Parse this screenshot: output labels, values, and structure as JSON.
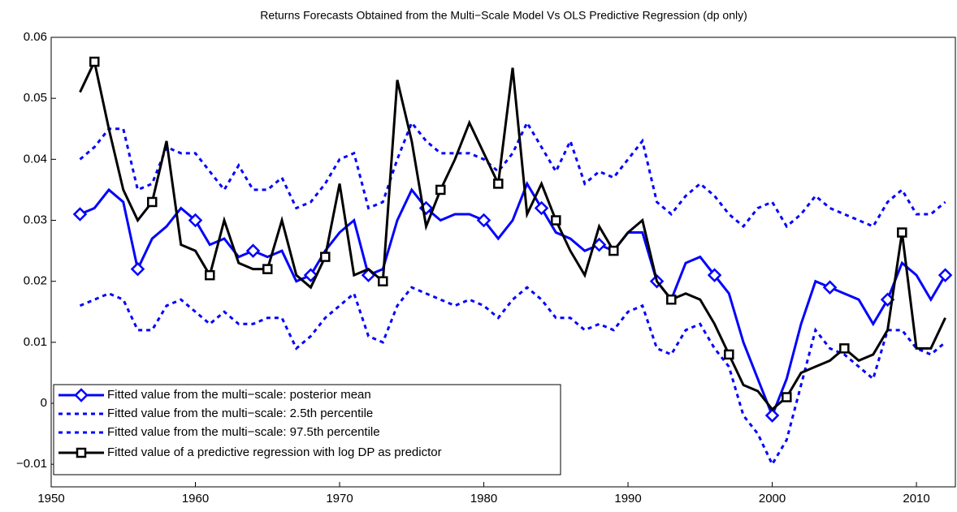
{
  "chart_data": {
    "type": "line",
    "title": "Returns Forecasts Obtained from the Multi−Scale Model Vs OLS Predictive Regression (dp only)",
    "x": [
      1952,
      1953,
      1954,
      1955,
      1956,
      1957,
      1958,
      1959,
      1960,
      1961,
      1962,
      1963,
      1964,
      1965,
      1966,
      1967,
      1968,
      1969,
      1970,
      1971,
      1972,
      1973,
      1974,
      1975,
      1976,
      1977,
      1978,
      1979,
      1980,
      1981,
      1982,
      1983,
      1984,
      1985,
      1986,
      1987,
      1988,
      1989,
      1990,
      1991,
      1992,
      1993,
      1994,
      1995,
      1996,
      1997,
      1998,
      1999,
      2000,
      2001,
      2002,
      2003,
      2004,
      2005,
      2006,
      2007,
      2008,
      2009,
      2010,
      2011,
      2012
    ],
    "series": [
      {
        "name": "Fitted value from the multi−scale: posterior mean",
        "color": "#0000ff",
        "style": "solid",
        "marker": "diamond",
        "values": [
          0.031,
          0.032,
          0.035,
          0.033,
          0.022,
          0.027,
          0.029,
          0.032,
          0.03,
          0.026,
          0.027,
          0.024,
          0.025,
          0.024,
          0.025,
          0.02,
          0.021,
          0.025,
          0.028,
          0.03,
          0.021,
          0.022,
          0.03,
          0.035,
          0.032,
          0.03,
          0.031,
          0.031,
          0.03,
          0.027,
          0.03,
          0.036,
          0.032,
          0.028,
          0.027,
          0.025,
          0.026,
          0.025,
          0.028,
          0.028,
          0.02,
          0.017,
          0.023,
          0.024,
          0.021,
          0.018,
          0.01,
          0.004,
          -0.002,
          0.004,
          0.013,
          0.02,
          0.019,
          0.018,
          0.017,
          0.013,
          0.017,
          0.023,
          0.021,
          0.017,
          0.021
        ]
      },
      {
        "name": "Fitted value from the multi−scale: 2.5th percentile",
        "color": "#0000ff",
        "style": "dashed",
        "marker": "none",
        "values": [
          0.016,
          0.017,
          0.018,
          0.017,
          0.012,
          0.012,
          0.016,
          0.017,
          0.015,
          0.013,
          0.015,
          0.013,
          0.013,
          0.014,
          0.014,
          0.009,
          0.011,
          0.014,
          0.016,
          0.018,
          0.011,
          0.01,
          0.016,
          0.019,
          0.018,
          0.017,
          0.016,
          0.017,
          0.016,
          0.014,
          0.017,
          0.019,
          0.017,
          0.014,
          0.014,
          0.012,
          0.013,
          0.012,
          0.015,
          0.016,
          0.009,
          0.008,
          0.012,
          0.013,
          0.009,
          0.006,
          -0.002,
          -0.005,
          -0.01,
          -0.006,
          0.003,
          0.012,
          0.009,
          0.008,
          0.006,
          0.004,
          0.012,
          0.012,
          0.009,
          0.008,
          0.01
        ]
      },
      {
        "name": "Fitted value from the multi−scale: 97.5th percentile",
        "color": "#0000ff",
        "style": "dashed",
        "marker": "none",
        "values": [
          0.04,
          0.042,
          0.045,
          0.045,
          0.035,
          0.036,
          0.042,
          0.041,
          0.041,
          0.038,
          0.035,
          0.039,
          0.035,
          0.035,
          0.037,
          0.032,
          0.033,
          0.036,
          0.04,
          0.041,
          0.032,
          0.033,
          0.04,
          0.046,
          0.043,
          0.041,
          0.041,
          0.041,
          0.04,
          0.038,
          0.041,
          0.046,
          0.042,
          0.038,
          0.043,
          0.036,
          0.038,
          0.037,
          0.04,
          0.043,
          0.033,
          0.031,
          0.034,
          0.036,
          0.034,
          0.031,
          0.029,
          0.032,
          0.033,
          0.029,
          0.031,
          0.034,
          0.032,
          0.031,
          0.03,
          0.029,
          0.033,
          0.035,
          0.031,
          0.031,
          0.033
        ]
      },
      {
        "name": "Fitted value of a predictive regression with log DP as predictor",
        "color": "#000000",
        "style": "solid",
        "marker": "square",
        "values": [
          0.051,
          0.056,
          0.045,
          0.035,
          0.03,
          0.033,
          0.043,
          0.026,
          0.025,
          0.021,
          0.03,
          0.023,
          0.022,
          0.022,
          0.03,
          0.021,
          0.019,
          0.024,
          0.036,
          0.021,
          0.022,
          0.02,
          0.053,
          0.043,
          0.029,
          0.035,
          0.04,
          0.046,
          0.041,
          0.036,
          0.055,
          0.031,
          0.036,
          0.03,
          0.025,
          0.021,
          0.029,
          0.025,
          0.028,
          0.03,
          0.02,
          0.017,
          0.018,
          0.017,
          0.013,
          0.008,
          0.003,
          0.002,
          -0.001,
          0.001,
          0.005,
          0.006,
          0.007,
          0.009,
          0.007,
          0.008,
          0.012,
          0.028,
          0.009,
          0.009,
          0.014
        ]
      }
    ],
    "xlim": [
      1950,
      2012.7
    ],
    "xticks": [
      1950,
      1960,
      1970,
      1980,
      1990,
      2000,
      2010
    ],
    "ylim": [
      -0.0137,
      0.06
    ],
    "yticks": [
      {
        "value": -0.01,
        "label": "−0.01"
      },
      0,
      0.01,
      0.02,
      0.03,
      0.04,
      0.05,
      0.06
    ],
    "grid": false,
    "legend": "lower left"
  }
}
